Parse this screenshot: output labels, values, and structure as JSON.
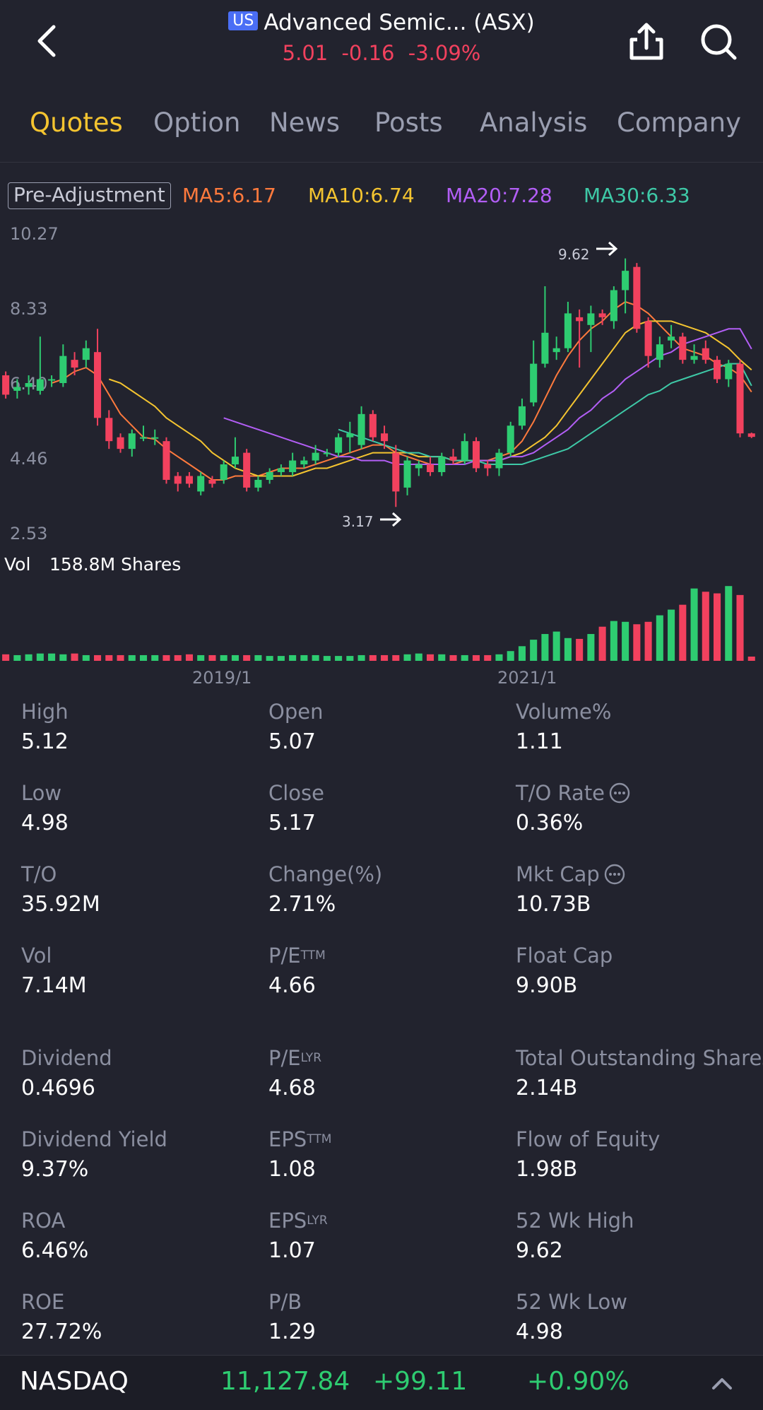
{
  "header": {
    "market_badge": "US",
    "title": "Advanced Semic... (ASX)",
    "price": "5.01",
    "change": "-0.16",
    "change_pct": "-3.09%"
  },
  "tabs": [
    "Quotes",
    "Option",
    "News",
    "Posts",
    "Analysis",
    "Company"
  ],
  "chart": {
    "adjust_label": "Pre-Adjustment",
    "ma": [
      {
        "label": "MA5:6.17",
        "color": "#ff7a3d"
      },
      {
        "label": "MA10:6.74",
        "color": "#f4c430"
      },
      {
        "label": "MA20:7.28",
        "color": "#b25ef5"
      },
      {
        "label": "MA30:6.33",
        "color": "#3ec9a7"
      }
    ],
    "y_ticks": [
      "10.27",
      "8.33",
      "6.40",
      "4.46",
      "2.53"
    ],
    "high_marker": "9.62",
    "low_marker": "3.17",
    "vol_label": "Vol",
    "vol_value": "158.8M Shares",
    "x_ticks": [
      "2019/1",
      "2021/1"
    ],
    "up_color": "#2ecc71",
    "down_color": "#f2415e"
  },
  "chart_data": {
    "type": "candlestick",
    "y_range": [
      2.53,
      10.27
    ],
    "candles": [
      {
        "o": 6.6,
        "h": 6.7,
        "l": 6.0,
        "c": 6.1
      },
      {
        "o": 6.2,
        "h": 6.5,
        "l": 6.0,
        "c": 6.3
      },
      {
        "o": 6.3,
        "h": 6.6,
        "l": 6.1,
        "c": 6.4
      },
      {
        "o": 6.2,
        "h": 7.6,
        "l": 6.1,
        "c": 6.5
      },
      {
        "o": 6.5,
        "h": 6.6,
        "l": 6.3,
        "c": 6.5
      },
      {
        "o": 6.4,
        "h": 7.4,
        "l": 6.3,
        "c": 7.1
      },
      {
        "o": 7.0,
        "h": 7.2,
        "l": 6.6,
        "c": 6.8
      },
      {
        "o": 7.0,
        "h": 7.5,
        "l": 6.8,
        "c": 7.3
      },
      {
        "o": 7.2,
        "h": 7.8,
        "l": 5.3,
        "c": 5.5
      },
      {
        "o": 5.5,
        "h": 5.7,
        "l": 4.7,
        "c": 4.9
      },
      {
        "o": 5.0,
        "h": 5.1,
        "l": 4.6,
        "c": 4.7
      },
      {
        "o": 4.7,
        "h": 5.2,
        "l": 4.5,
        "c": 5.1
      },
      {
        "o": 5.0,
        "h": 5.3,
        "l": 4.9,
        "c": 5.0
      },
      {
        "o": 5.0,
        "h": 5.2,
        "l": 4.8,
        "c": 5.0
      },
      {
        "o": 4.9,
        "h": 5.0,
        "l": 3.8,
        "c": 3.9
      },
      {
        "o": 4.0,
        "h": 4.1,
        "l": 3.6,
        "c": 3.8
      },
      {
        "o": 4.0,
        "h": 4.1,
        "l": 3.7,
        "c": 3.8
      },
      {
        "o": 3.6,
        "h": 4.1,
        "l": 3.5,
        "c": 4.0
      },
      {
        "o": 3.9,
        "h": 4.0,
        "l": 3.7,
        "c": 3.8
      },
      {
        "o": 3.9,
        "h": 4.4,
        "l": 3.8,
        "c": 4.3
      },
      {
        "o": 4.3,
        "h": 5.0,
        "l": 4.2,
        "c": 4.5
      },
      {
        "o": 4.6,
        "h": 4.7,
        "l": 3.6,
        "c": 3.7
      },
      {
        "o": 3.7,
        "h": 4.0,
        "l": 3.6,
        "c": 3.9
      },
      {
        "o": 3.9,
        "h": 4.2,
        "l": 3.8,
        "c": 4.1
      },
      {
        "o": 4.1,
        "h": 4.3,
        "l": 4.0,
        "c": 4.2
      },
      {
        "o": 4.1,
        "h": 4.6,
        "l": 4.0,
        "c": 4.4
      },
      {
        "o": 4.3,
        "h": 4.5,
        "l": 4.2,
        "c": 4.4
      },
      {
        "o": 4.4,
        "h": 4.8,
        "l": 4.3,
        "c": 4.6
      },
      {
        "o": 4.6,
        "h": 4.7,
        "l": 4.5,
        "c": 4.6
      },
      {
        "o": 4.6,
        "h": 5.1,
        "l": 4.5,
        "c": 5.0
      },
      {
        "o": 5.0,
        "h": 5.4,
        "l": 4.6,
        "c": 5.1
      },
      {
        "o": 4.8,
        "h": 5.8,
        "l": 4.7,
        "c": 5.6
      },
      {
        "o": 5.6,
        "h": 5.7,
        "l": 4.9,
        "c": 5.0
      },
      {
        "o": 5.1,
        "h": 5.3,
        "l": 4.7,
        "c": 4.9
      },
      {
        "o": 4.6,
        "h": 4.8,
        "l": 3.2,
        "c": 3.6
      },
      {
        "o": 3.7,
        "h": 4.5,
        "l": 3.5,
        "c": 4.4
      },
      {
        "o": 4.2,
        "h": 4.4,
        "l": 4.0,
        "c": 4.3
      },
      {
        "o": 4.3,
        "h": 4.5,
        "l": 4.0,
        "c": 4.1
      },
      {
        "o": 4.1,
        "h": 4.6,
        "l": 4.0,
        "c": 4.5
      },
      {
        "o": 4.5,
        "h": 4.7,
        "l": 4.3,
        "c": 4.4
      },
      {
        "o": 4.4,
        "h": 5.1,
        "l": 4.3,
        "c": 4.9
      },
      {
        "o": 4.9,
        "h": 5.0,
        "l": 4.1,
        "c": 4.2
      },
      {
        "o": 4.3,
        "h": 4.4,
        "l": 4.0,
        "c": 4.2
      },
      {
        "o": 4.2,
        "h": 4.7,
        "l": 4.0,
        "c": 4.6
      },
      {
        "o": 4.6,
        "h": 5.4,
        "l": 4.5,
        "c": 5.3
      },
      {
        "o": 5.3,
        "h": 6.0,
        "l": 5.2,
        "c": 5.8
      },
      {
        "o": 5.9,
        "h": 7.5,
        "l": 5.8,
        "c": 6.9
      },
      {
        "o": 6.9,
        "h": 8.9,
        "l": 6.8,
        "c": 7.7
      },
      {
        "o": 7.2,
        "h": 7.6,
        "l": 7.0,
        "c": 7.3
      },
      {
        "o": 7.3,
        "h": 8.5,
        "l": 7.2,
        "c": 8.2
      },
      {
        "o": 8.1,
        "h": 8.3,
        "l": 6.8,
        "c": 8.0
      },
      {
        "o": 7.9,
        "h": 8.4,
        "l": 7.2,
        "c": 8.2
      },
      {
        "o": 8.2,
        "h": 8.3,
        "l": 7.9,
        "c": 8.1
      },
      {
        "o": 8.0,
        "h": 8.9,
        "l": 7.8,
        "c": 8.8
      },
      {
        "o": 8.8,
        "h": 9.62,
        "l": 8.2,
        "c": 9.3
      },
      {
        "o": 9.4,
        "h": 9.5,
        "l": 7.7,
        "c": 7.8
      },
      {
        "o": 8.0,
        "h": 8.1,
        "l": 6.8,
        "c": 7.1
      },
      {
        "o": 7.0,
        "h": 7.6,
        "l": 6.8,
        "c": 7.4
      },
      {
        "o": 7.5,
        "h": 7.9,
        "l": 7.3,
        "c": 7.6
      },
      {
        "o": 7.6,
        "h": 7.7,
        "l": 6.9,
        "c": 7.0
      },
      {
        "o": 7.0,
        "h": 7.4,
        "l": 6.9,
        "c": 7.1
      },
      {
        "o": 7.3,
        "h": 7.5,
        "l": 6.9,
        "c": 7.0
      },
      {
        "o": 7.0,
        "h": 7.1,
        "l": 6.4,
        "c": 6.5
      },
      {
        "o": 6.5,
        "h": 7.0,
        "l": 6.3,
        "c": 6.9
      },
      {
        "o": 6.9,
        "h": 7.0,
        "l": 5.0,
        "c": 5.1
      },
      {
        "o": 5.1,
        "h": 5.12,
        "l": 4.98,
        "c": 5.01
      }
    ],
    "ma_series": [
      {
        "name": "MA5",
        "values": [
          null,
          null,
          null,
          null,
          6.4,
          6.5,
          6.7,
          6.8,
          6.6,
          6.1,
          5.6,
          5.3,
          5.0,
          4.95,
          4.7,
          4.5,
          4.3,
          4.1,
          3.9,
          3.9,
          4.0,
          4.0,
          4.0,
          4.1,
          4.2,
          4.2,
          4.2,
          4.3,
          4.4,
          4.5,
          4.6,
          4.7,
          4.8,
          4.8,
          4.6,
          4.5,
          4.4,
          4.3,
          4.3,
          4.3,
          4.4,
          4.4,
          4.4,
          4.5,
          4.6,
          4.9,
          5.4,
          6.0,
          6.6,
          7.1,
          7.5,
          7.8,
          8.0,
          8.3,
          8.5,
          8.4,
          8.2,
          7.9,
          7.6,
          7.3,
          7.2,
          7.1,
          6.9,
          6.8,
          6.6,
          6.17
        ]
      },
      {
        "name": "MA10",
        "values": [
          null,
          null,
          null,
          null,
          null,
          null,
          null,
          null,
          null,
          6.5,
          6.4,
          6.2,
          6.0,
          5.8,
          5.5,
          5.3,
          5.1,
          4.9,
          4.6,
          4.4,
          4.2,
          4.1,
          4.0,
          4.0,
          4.0,
          4.0,
          4.1,
          4.2,
          4.2,
          4.3,
          4.4,
          4.5,
          4.6,
          4.6,
          4.6,
          4.6,
          4.5,
          4.5,
          4.5,
          4.4,
          4.4,
          4.4,
          4.4,
          4.4,
          4.5,
          4.6,
          4.8,
          5.0,
          5.3,
          5.7,
          6.1,
          6.5,
          6.9,
          7.3,
          7.7,
          7.9,
          8.0,
          8.0,
          8.0,
          7.9,
          7.8,
          7.7,
          7.5,
          7.3,
          7.0,
          6.74
        ]
      },
      {
        "name": "MA20",
        "values": [
          null,
          null,
          null,
          null,
          null,
          null,
          null,
          null,
          null,
          null,
          null,
          null,
          null,
          null,
          null,
          null,
          null,
          null,
          null,
          5.5,
          5.4,
          5.3,
          5.2,
          5.1,
          5.0,
          4.9,
          4.8,
          4.7,
          4.6,
          4.5,
          4.5,
          4.4,
          4.4,
          4.4,
          4.3,
          4.3,
          4.3,
          4.3,
          4.3,
          4.3,
          4.3,
          4.4,
          4.4,
          4.4,
          4.5,
          4.5,
          4.6,
          4.8,
          5.0,
          5.2,
          5.5,
          5.7,
          6.0,
          6.2,
          6.5,
          6.7,
          6.9,
          7.1,
          7.2,
          7.4,
          7.5,
          7.6,
          7.7,
          7.8,
          7.8,
          7.28
        ]
      },
      {
        "name": "MA30",
        "values": [
          null,
          null,
          null,
          null,
          null,
          null,
          null,
          null,
          null,
          null,
          null,
          null,
          null,
          null,
          null,
          null,
          null,
          null,
          null,
          null,
          null,
          null,
          null,
          null,
          null,
          null,
          null,
          null,
          null,
          5.2,
          5.1,
          5.0,
          4.9,
          4.8,
          4.7,
          4.6,
          4.6,
          4.5,
          4.5,
          4.4,
          4.4,
          4.4,
          4.3,
          4.3,
          4.3,
          4.3,
          4.4,
          4.5,
          4.6,
          4.7,
          4.9,
          5.1,
          5.3,
          5.5,
          5.7,
          5.9,
          6.1,
          6.2,
          6.4,
          6.5,
          6.6,
          6.7,
          6.8,
          6.9,
          6.9,
          6.33
        ]
      }
    ],
    "volume": [
      0.08,
      0.07,
      0.08,
      0.09,
      0.09,
      0.08,
      0.09,
      0.07,
      0.07,
      0.07,
      0.07,
      0.07,
      0.07,
      0.07,
      0.07,
      0.07,
      0.08,
      0.07,
      0.07,
      0.07,
      0.07,
      0.07,
      0.07,
      0.06,
      0.06,
      0.07,
      0.07,
      0.07,
      0.06,
      0.06,
      0.06,
      0.07,
      0.07,
      0.07,
      0.07,
      0.08,
      0.09,
      0.08,
      0.08,
      0.07,
      0.07,
      0.07,
      0.07,
      0.08,
      0.12,
      0.18,
      0.26,
      0.33,
      0.36,
      0.28,
      0.27,
      0.33,
      0.42,
      0.49,
      0.48,
      0.45,
      0.48,
      0.56,
      0.63,
      0.69,
      0.89,
      0.85,
      0.83,
      0.92,
      0.81,
      0.04
    ],
    "x_ticks": [
      "2019/1",
      "2021/1"
    ]
  },
  "stats": [
    {
      "label": "High",
      "sup": "",
      "value": "5.12",
      "info": false
    },
    {
      "label": "Open",
      "sup": "",
      "value": "5.07",
      "info": false
    },
    {
      "label": "Volume%",
      "sup": "",
      "value": "1.11",
      "info": false
    },
    {
      "label": "Low",
      "sup": "",
      "value": "4.98",
      "info": false
    },
    {
      "label": "Close",
      "sup": "",
      "value": "5.17",
      "info": false
    },
    {
      "label": "T/O Rate",
      "sup": "",
      "value": "0.36%",
      "info": true
    },
    {
      "label": "T/O",
      "sup": "",
      "value": "35.92M",
      "info": false
    },
    {
      "label": "Change(%)",
      "sup": "",
      "value": "2.71%",
      "info": false
    },
    {
      "label": "Mkt Cap",
      "sup": "",
      "value": "10.73B",
      "info": true
    },
    {
      "label": "Vol",
      "sup": "",
      "value": "7.14M",
      "info": false
    },
    {
      "label": "P/E",
      "sup": "TTM",
      "value": "4.66",
      "info": false
    },
    {
      "label": "Float Cap",
      "sup": "",
      "value": "9.90B",
      "info": false
    },
    {
      "label": "Dividend",
      "sup": "",
      "value": "0.4696",
      "info": false
    },
    {
      "label": "P/E",
      "sup": "LYR",
      "value": "4.68",
      "info": false
    },
    {
      "label": "Total Outstanding Shares",
      "sup": "",
      "value": "2.14B",
      "info": false
    },
    {
      "label": "Dividend Yield",
      "sup": "",
      "value": "9.37%",
      "info": false
    },
    {
      "label": "EPS",
      "sup": "TTM",
      "value": "1.08",
      "info": false
    },
    {
      "label": "Flow of Equity",
      "sup": "",
      "value": "1.98B",
      "info": false
    },
    {
      "label": "ROA",
      "sup": "",
      "value": "6.46%",
      "info": false
    },
    {
      "label": "EPS",
      "sup": "LYR",
      "value": "1.07",
      "info": false
    },
    {
      "label": "52 Wk High",
      "sup": "",
      "value": "9.62",
      "info": false
    },
    {
      "label": "ROE",
      "sup": "",
      "value": "27.72%",
      "info": false
    },
    {
      "label": "P/B",
      "sup": "",
      "value": "1.29",
      "info": false
    },
    {
      "label": "52 Wk Low",
      "sup": "",
      "value": "4.98",
      "info": false
    }
  ],
  "bottom_bar": {
    "index_name": "NASDAQ",
    "index_value": "11,127.84",
    "index_change": "+99.11",
    "index_change_pct": "+0.90%"
  }
}
